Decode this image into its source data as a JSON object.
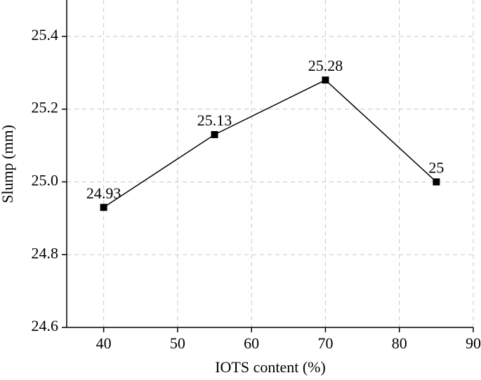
{
  "chart_data": {
    "type": "line",
    "x_label": "IOTS content (%)",
    "y_label": "Slump (mm)",
    "x": [
      40,
      55,
      70,
      85
    ],
    "series": [
      {
        "name": "Slump",
        "color": "#000000",
        "values": [
          24.93,
          25.13,
          25.28,
          25
        ]
      }
    ],
    "xlim": [
      35,
      90
    ],
    "xticks": [
      40,
      50,
      60,
      70,
      80,
      90
    ],
    "ylim": [
      24.6,
      25.5
    ],
    "yticks": [
      24.6,
      24.8,
      {
        "value": 25,
        "label": "25.0"
      },
      25.2,
      25.4
    ],
    "grid": true
  }
}
